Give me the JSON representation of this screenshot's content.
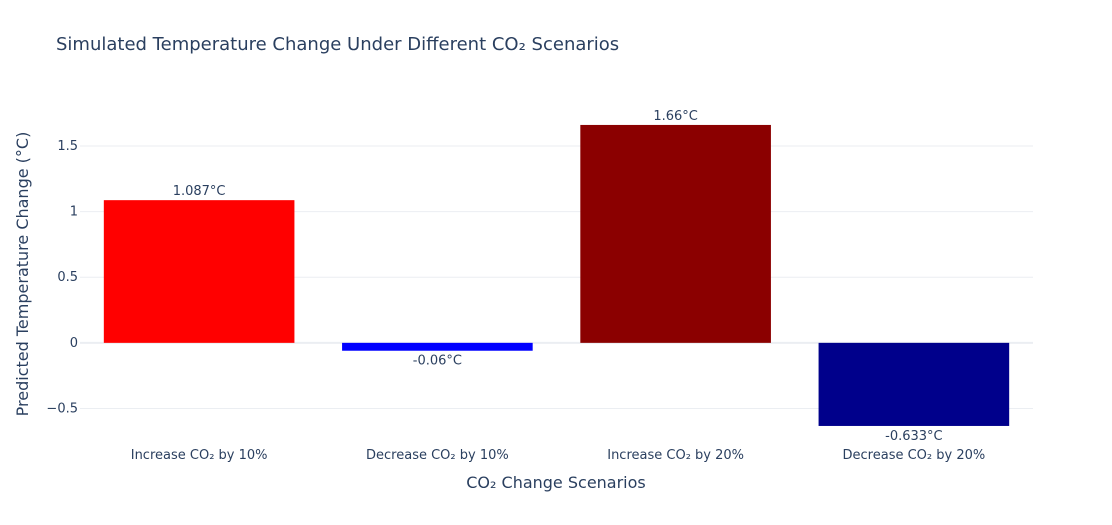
{
  "chart_data": {
    "type": "bar",
    "title": "Simulated Temperature Change Under Different CO₂ Scenarios",
    "xlabel": "CO₂ Change Scenarios",
    "ylabel": "Predicted Temperature Change (°C)",
    "categories": [
      "Increase CO₂ by 10%",
      "Decrease CO₂ by 10%",
      "Increase CO₂ by 20%",
      "Decrease CO₂ by 20%"
    ],
    "values": [
      1.087,
      -0.06,
      1.66,
      -0.633
    ],
    "data_labels": [
      "1.087°C",
      "-0.06°C",
      "1.66°C",
      "-0.633°C"
    ],
    "colors": [
      "#ff0000",
      "#0000ff",
      "#8b0000",
      "#00008b"
    ],
    "ylim": [
      -0.74,
      1.85
    ],
    "yticks": [
      -0.5,
      0,
      0.5,
      1,
      1.5
    ],
    "ytick_labels": [
      "−0.5",
      "0",
      "0.5",
      "1",
      "1.5"
    ],
    "grid": true,
    "legend": false
  }
}
